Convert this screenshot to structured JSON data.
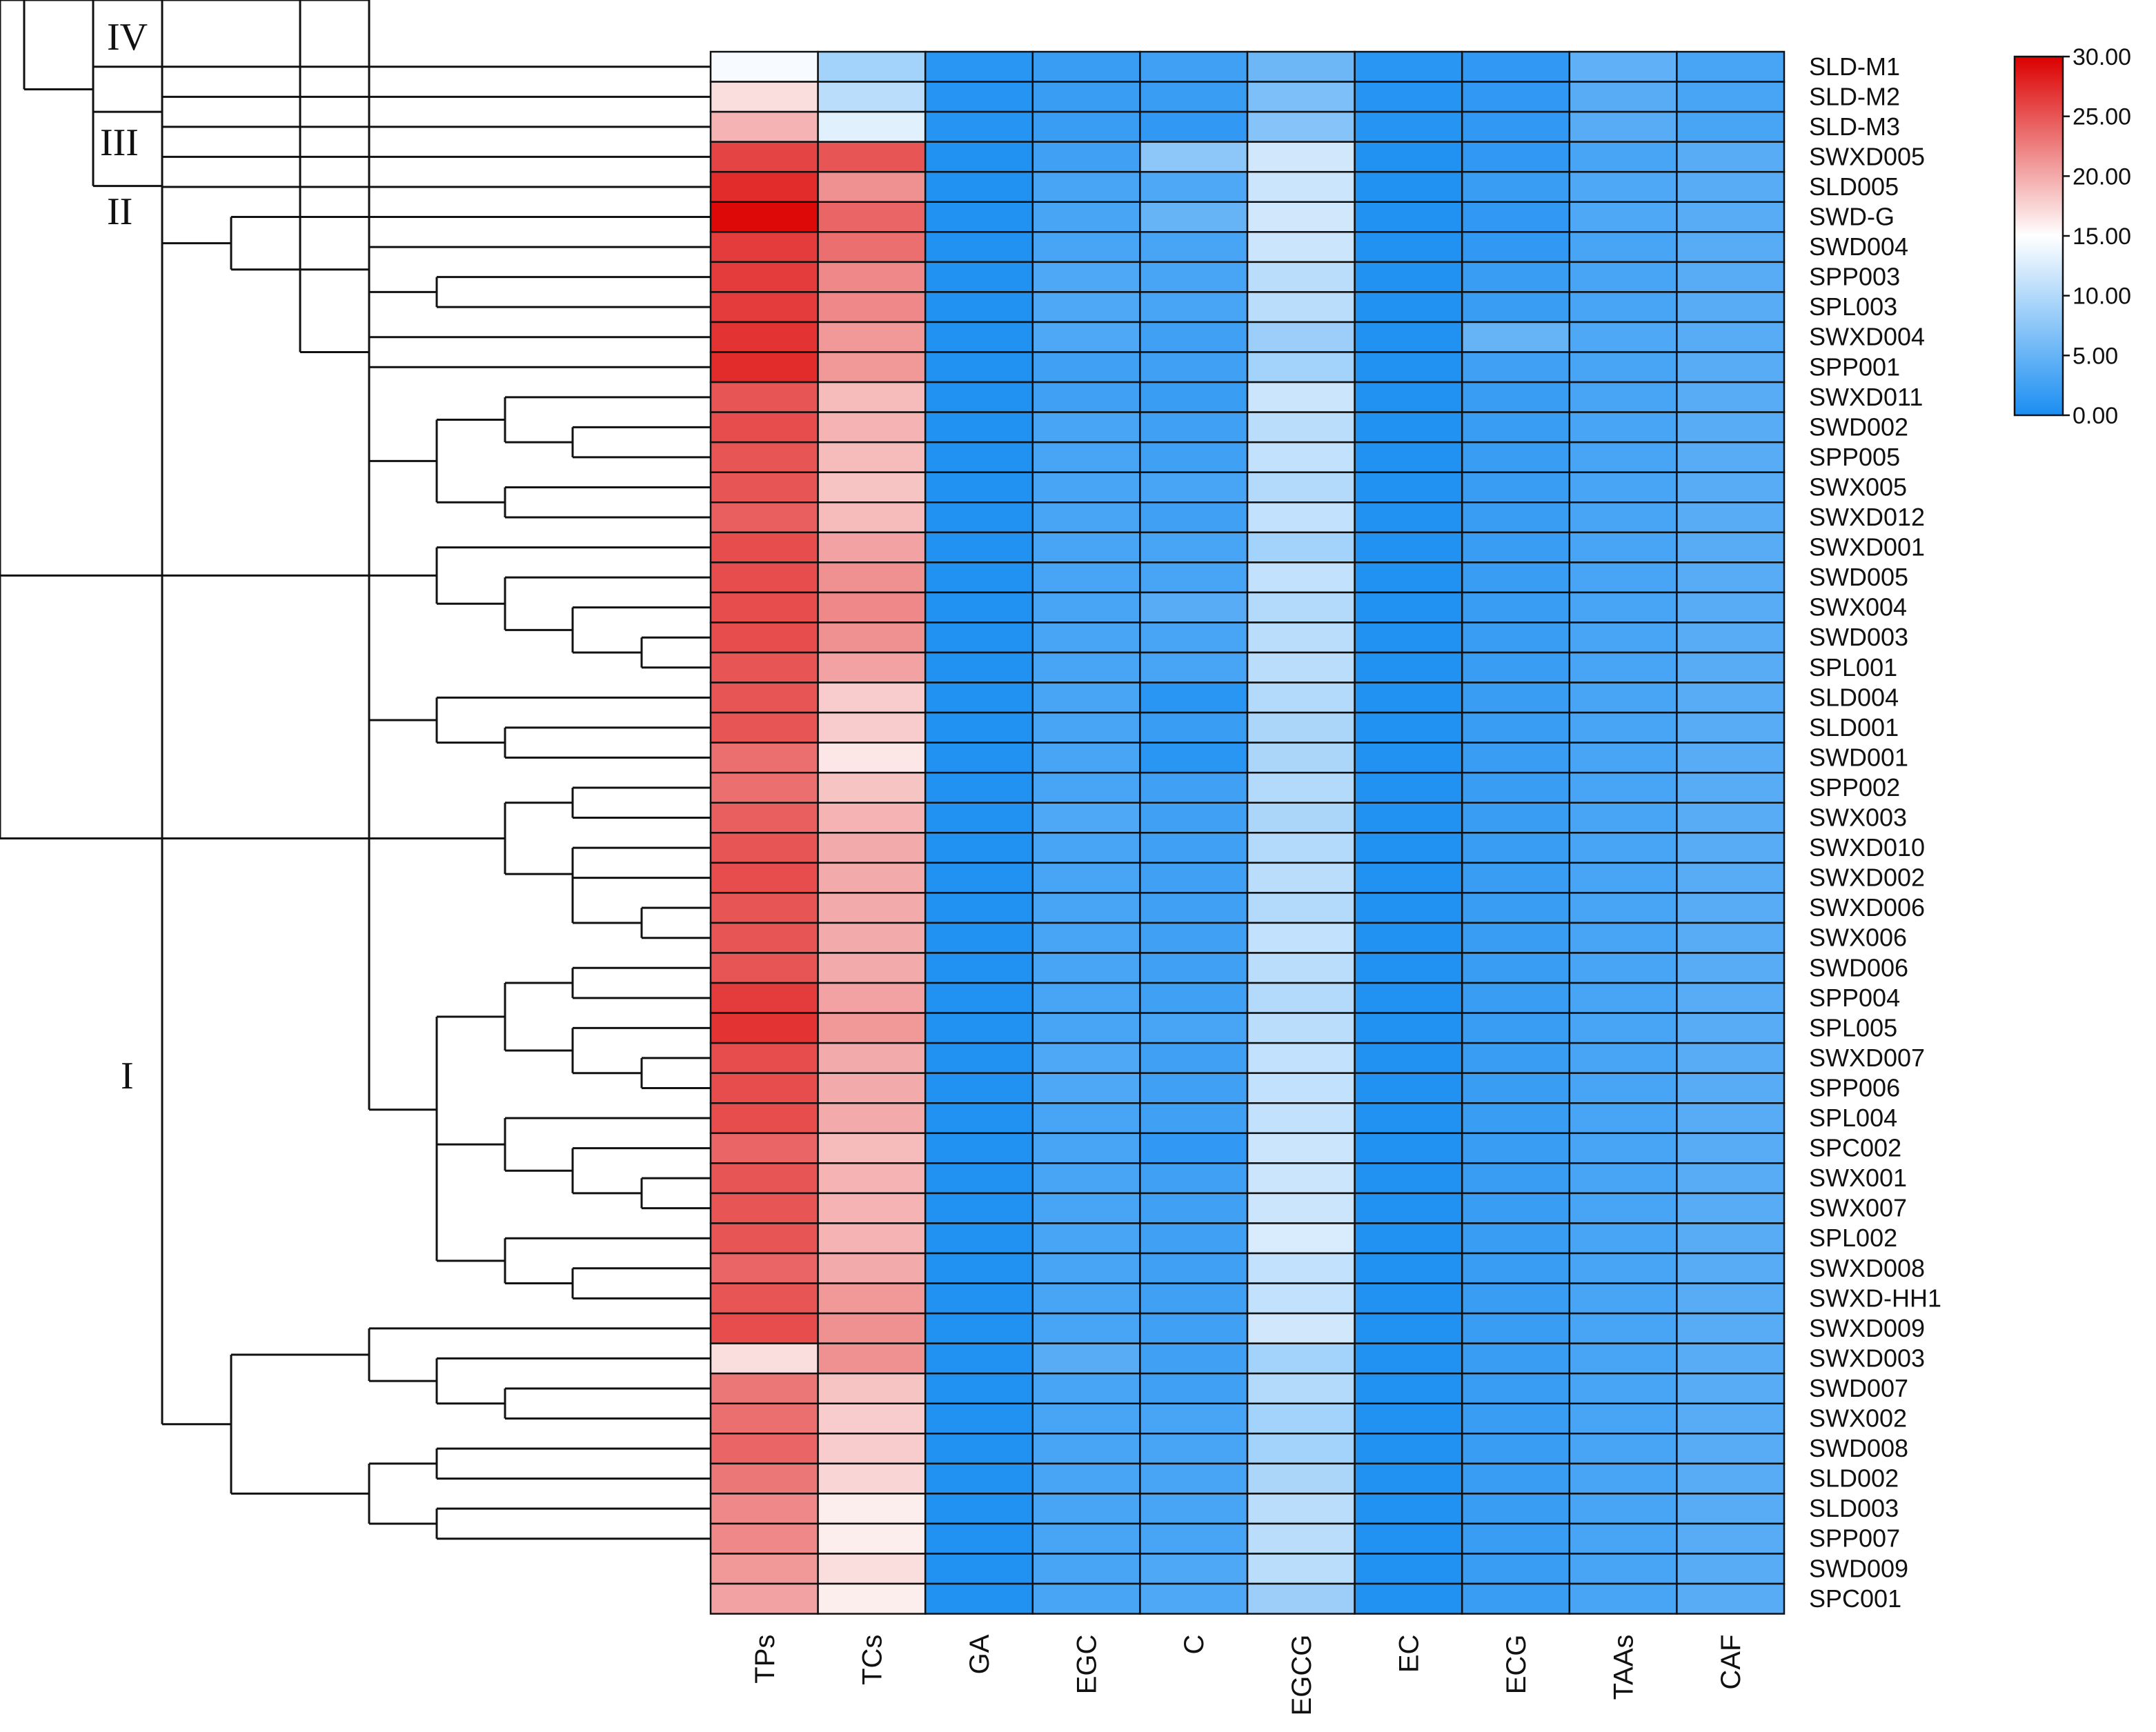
{
  "chart_data": {
    "type": "heatmap",
    "title": "",
    "columns": [
      "TPs",
      "TCs",
      "GA",
      "EGC",
      "C",
      "EGCG",
      "EC",
      "ECG",
      "TAAs",
      "CAF"
    ],
    "rows": [
      "SLD-M1",
      "SLD-M2",
      "SLD-M3",
      "SWXD005",
      "SLD005",
      "SWD-G",
      "SWD004",
      "SPP003",
      "SPL003",
      "SWXD004",
      "SPP001",
      "SWXD011",
      "SWD002",
      "SPP005",
      "SWX005",
      "SWXD012",
      "SWXD001",
      "SWD005",
      "SWX004",
      "SWD003",
      "SPL001",
      "SLD004",
      "SLD001",
      "SWD001",
      "SPP002",
      "SWX003",
      "SWXD010",
      "SWXD002",
      "SWXD006",
      "SWX006",
      "SWD006",
      "SPP004",
      "SPL005",
      "SWXD007",
      "SPP006",
      "SPL004",
      "SPC002",
      "SWX001",
      "SWX007",
      "SPL002",
      "SWXD008",
      "SWXD-HH1",
      "SWXD009",
      "SWXD003",
      "SWD007",
      "SWX002",
      "SWD008",
      "SLD002",
      "SLD003",
      "SPP007",
      "SWD009",
      "SPC001"
    ],
    "values": [
      [
        14.5,
        9.0,
        1.0,
        2.0,
        2.5,
        5.5,
        1.0,
        1.5,
        4.5,
        3.0
      ],
      [
        17.0,
        10.5,
        0.8,
        2.0,
        2.0,
        6.5,
        0.8,
        1.5,
        4.0,
        3.0
      ],
      [
        19.5,
        13.0,
        0.8,
        2.0,
        1.5,
        7.0,
        0.8,
        1.5,
        4.0,
        3.0
      ],
      [
        26.0,
        25.0,
        0.5,
        2.5,
        7.5,
        12.0,
        0.5,
        1.5,
        3.0,
        4.0
      ],
      [
        27.5,
        21.5,
        0.5,
        3.0,
        3.5,
        11.5,
        0.5,
        2.0,
        3.5,
        4.0
      ],
      [
        29.5,
        24.0,
        0.5,
        3.0,
        5.0,
        12.0,
        0.5,
        1.5,
        3.5,
        4.0
      ],
      [
        26.5,
        23.5,
        0.5,
        3.0,
        3.0,
        11.5,
        0.5,
        1.5,
        3.0,
        4.0
      ],
      [
        26.5,
        22.0,
        0.5,
        3.5,
        3.0,
        10.5,
        0.5,
        2.0,
        3.0,
        4.0
      ],
      [
        26.5,
        22.0,
        0.5,
        3.5,
        3.0,
        10.5,
        0.5,
        2.0,
        3.0,
        4.0
      ],
      [
        27.0,
        21.0,
        0.5,
        3.5,
        2.5,
        8.5,
        0.5,
        5.0,
        3.5,
        4.0
      ],
      [
        27.5,
        21.0,
        0.5,
        2.5,
        2.5,
        9.0,
        0.5,
        2.5,
        3.0,
        4.0
      ],
      [
        25.0,
        19.0,
        0.5,
        2.5,
        2.0,
        11.5,
        0.5,
        2.0,
        3.0,
        4.0
      ],
      [
        25.5,
        19.5,
        0.5,
        3.0,
        2.5,
        10.5,
        0.5,
        2.0,
        3.0,
        4.0
      ],
      [
        25.0,
        19.0,
        0.5,
        3.0,
        2.5,
        11.0,
        0.5,
        2.0,
        3.0,
        4.0
      ],
      [
        25.0,
        18.5,
        0.5,
        3.0,
        3.0,
        10.0,
        0.5,
        2.0,
        3.0,
        4.0
      ],
      [
        24.5,
        19.0,
        0.5,
        3.0,
        2.5,
        11.0,
        0.5,
        2.0,
        3.0,
        4.0
      ],
      [
        25.5,
        20.5,
        0.5,
        3.0,
        3.0,
        9.0,
        0.5,
        2.0,
        3.0,
        4.0
      ],
      [
        25.5,
        21.5,
        0.5,
        3.0,
        3.0,
        11.0,
        0.5,
        2.0,
        3.0,
        4.0
      ],
      [
        25.5,
        22.0,
        0.5,
        3.0,
        4.0,
        10.0,
        0.5,
        2.0,
        3.0,
        4.0
      ],
      [
        25.5,
        21.5,
        0.5,
        3.0,
        3.0,
        10.5,
        0.5,
        2.0,
        3.0,
        4.0
      ],
      [
        25.0,
        20.5,
        0.5,
        3.0,
        3.0,
        10.5,
        0.5,
        2.0,
        3.0,
        4.0
      ],
      [
        25.0,
        18.0,
        0.5,
        3.0,
        1.0,
        10.0,
        0.5,
        2.0,
        3.0,
        4.0
      ],
      [
        25.0,
        18.0,
        0.5,
        3.0,
        2.0,
        9.5,
        0.5,
        2.0,
        3.0,
        4.0
      ],
      [
        23.5,
        16.5,
        0.5,
        3.0,
        1.0,
        9.5,
        0.5,
        2.0,
        3.0,
        4.0
      ],
      [
        23.5,
        18.5,
        0.5,
        3.0,
        2.5,
        10.0,
        0.5,
        2.0,
        3.0,
        4.0
      ],
      [
        24.5,
        19.5,
        0.5,
        3.5,
        2.5,
        9.5,
        0.5,
        2.0,
        3.0,
        4.0
      ],
      [
        25.0,
        20.0,
        0.5,
        3.0,
        2.5,
        10.0,
        0.5,
        2.0,
        3.0,
        4.0
      ],
      [
        25.5,
        20.0,
        0.5,
        3.0,
        2.5,
        10.5,
        0.5,
        2.0,
        3.0,
        4.0
      ],
      [
        25.0,
        20.0,
        0.5,
        3.0,
        2.5,
        10.0,
        0.5,
        2.0,
        3.0,
        4.0
      ],
      [
        25.0,
        20.0,
        0.5,
        3.0,
        2.5,
        11.0,
        0.5,
        2.0,
        3.0,
        4.0
      ],
      [
        25.0,
        20.0,
        0.5,
        3.0,
        2.5,
        10.5,
        0.5,
        2.0,
        3.0,
        4.0
      ],
      [
        26.5,
        20.5,
        0.5,
        3.0,
        2.5,
        10.0,
        0.5,
        2.0,
        3.0,
        4.0
      ],
      [
        27.0,
        21.0,
        0.5,
        3.0,
        3.0,
        10.5,
        0.5,
        2.0,
        3.0,
        4.0
      ],
      [
        25.5,
        20.0,
        0.5,
        3.5,
        2.5,
        11.0,
        0.5,
        2.0,
        3.0,
        4.0
      ],
      [
        25.5,
        20.0,
        0.5,
        3.5,
        2.5,
        11.0,
        0.5,
        2.0,
        3.0,
        4.0
      ],
      [
        25.5,
        20.0,
        0.5,
        3.0,
        2.5,
        11.0,
        0.5,
        2.0,
        3.0,
        4.0
      ],
      [
        24.0,
        19.0,
        0.5,
        3.0,
        1.5,
        11.5,
        0.5,
        2.0,
        3.0,
        4.0
      ],
      [
        25.0,
        19.5,
        0.5,
        3.0,
        2.5,
        11.5,
        0.5,
        2.0,
        3.0,
        4.0
      ],
      [
        25.0,
        19.5,
        0.5,
        3.0,
        2.5,
        11.5,
        0.5,
        2.0,
        3.0,
        4.0
      ],
      [
        25.0,
        19.5,
        0.5,
        3.0,
        2.5,
        12.5,
        0.5,
        2.0,
        3.0,
        4.0
      ],
      [
        24.0,
        20.0,
        0.5,
        3.0,
        2.5,
        11.0,
        0.5,
        2.0,
        3.0,
        4.0
      ],
      [
        25.0,
        21.0,
        0.5,
        3.0,
        2.5,
        11.0,
        0.5,
        2.0,
        3.0,
        4.0
      ],
      [
        25.5,
        21.5,
        0.5,
        3.0,
        2.5,
        12.0,
        0.5,
        2.0,
        3.0,
        4.0
      ],
      [
        17.0,
        21.5,
        0.5,
        4.0,
        2.5,
        9.0,
        0.5,
        2.0,
        3.0,
        4.0
      ],
      [
        23.0,
        18.5,
        0.5,
        3.0,
        2.5,
        10.0,
        0.5,
        2.0,
        3.0,
        4.0
      ],
      [
        23.5,
        18.0,
        0.5,
        3.0,
        3.0,
        9.0,
        0.5,
        2.0,
        3.0,
        4.0
      ],
      [
        24.0,
        18.0,
        0.5,
        3.0,
        3.0,
        9.0,
        0.5,
        2.0,
        3.0,
        4.0
      ],
      [
        23.0,
        17.5,
        0.5,
        3.0,
        3.0,
        9.5,
        0.5,
        2.0,
        3.0,
        4.0
      ],
      [
        22.0,
        16.0,
        0.5,
        3.0,
        3.0,
        10.5,
        0.5,
        2.0,
        3.0,
        4.0
      ],
      [
        22.0,
        16.0,
        0.5,
        3.0,
        3.0,
        10.5,
        0.5,
        2.0,
        3.0,
        4.0
      ],
      [
        21.0,
        17.0,
        0.5,
        3.0,
        3.5,
        10.5,
        0.5,
        2.0,
        3.0,
        4.0
      ],
      [
        20.5,
        16.0,
        0.5,
        3.0,
        3.5,
        8.5,
        0.5,
        2.0,
        3.0,
        4.0
      ]
    ],
    "color_scale": {
      "min": 0,
      "max": 30,
      "stops": [
        {
          "value": 0,
          "color": "#1a8ef2"
        },
        {
          "value": 15,
          "color": "#ffffff"
        },
        {
          "value": 30,
          "color": "#dc0000"
        }
      ],
      "ticks": [
        "30.00",
        "25.00",
        "20.00",
        "15.00",
        "10.00",
        "5.00",
        "0.00"
      ]
    },
    "clusters": [
      {
        "label": "IV"
      },
      {
        "label": "III"
      },
      {
        "label": "II"
      },
      {
        "label": "I"
      }
    ]
  }
}
